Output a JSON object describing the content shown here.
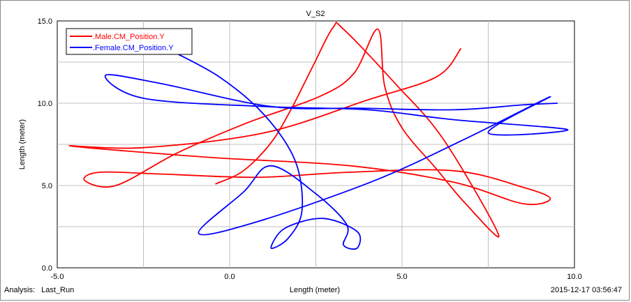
{
  "chart_data": {
    "type": "line",
    "title": "V_S2",
    "xlabel": "Length (meter)",
    "ylabel": "Length (meter)",
    "xlim": [
      -5.0,
      10.0
    ],
    "ylim": [
      0.0,
      15.0
    ],
    "x_ticks": [
      "-5.0",
      "0.0",
      "5.0",
      "10.0"
    ],
    "y_ticks": [
      "0.0",
      "5.0",
      "10.0",
      "15.0"
    ],
    "x_tick_values": [
      -5.0,
      0.0,
      5.0,
      10.0
    ],
    "y_tick_values": [
      0.0,
      5.0,
      10.0,
      15.0
    ],
    "grid": true,
    "legend_position": "top-left",
    "series": [
      {
        "name": ".Male.CM_Position.Y",
        "color": "#ff0000",
        "points": [
          [
            -0.4,
            5.1
          ],
          [
            0.4,
            5.9
          ],
          [
            1.2,
            7.6
          ],
          [
            1.8,
            9.7
          ],
          [
            2.4,
            12.2
          ],
          [
            3.0,
            14.6
          ],
          [
            3.3,
            14.5
          ],
          [
            4.8,
            11.2
          ],
          [
            6.2,
            7.8
          ],
          [
            7.8,
            2.0
          ],
          [
            6.8,
            4.0
          ],
          [
            6.0,
            6.0
          ],
          [
            5.0,
            8.5
          ],
          [
            4.5,
            11.0
          ],
          [
            4.3,
            14.5
          ],
          [
            3.6,
            11.8
          ],
          [
            2.6,
            10.4
          ],
          [
            0.5,
            8.8
          ],
          [
            -1.5,
            7.0
          ],
          [
            -3.3,
            5.0
          ],
          [
            -4.2,
            5.3
          ],
          [
            -3.8,
            5.8
          ],
          [
            -2.0,
            5.7
          ],
          [
            0.8,
            5.5
          ],
          [
            3.4,
            5.8
          ],
          [
            6.5,
            5.9
          ],
          [
            8.5,
            4.9
          ],
          [
            9.3,
            4.2
          ],
          [
            8.5,
            3.9
          ],
          [
            6.5,
            5.2
          ],
          [
            3.5,
            6.2
          ],
          [
            -0.5,
            6.7
          ],
          [
            -4.6,
            7.4
          ],
          [
            -2.5,
            7.3
          ],
          [
            1.0,
            8.2
          ],
          [
            4.0,
            10.2
          ],
          [
            6.0,
            11.6
          ],
          [
            6.7,
            13.3
          ]
        ]
      },
      {
        "name": ".Female.CM_Position.Y",
        "color": "#0000ff",
        "points": [
          [
            -1.8,
            13.3
          ],
          [
            -0.3,
            11.6
          ],
          [
            1.0,
            9.3
          ],
          [
            1.9,
            6.5
          ],
          [
            2.1,
            3.5
          ],
          [
            1.7,
            1.8
          ],
          [
            1.2,
            1.2
          ],
          [
            1.6,
            2.4
          ],
          [
            2.7,
            3.0
          ],
          [
            3.7,
            2.2
          ],
          [
            3.7,
            1.2
          ],
          [
            3.3,
            1.4
          ],
          [
            3.4,
            2.6
          ],
          [
            2.5,
            4.5
          ],
          [
            1.2,
            6.2
          ],
          [
            0.4,
            4.6
          ],
          [
            -0.9,
            2.1
          ],
          [
            0.8,
            2.8
          ],
          [
            4.2,
            5.3
          ],
          [
            6.8,
            7.8
          ],
          [
            9.3,
            10.4
          ],
          [
            7.5,
            8.2
          ],
          [
            9.8,
            8.4
          ],
          [
            6.5,
            9.0
          ],
          [
            4.0,
            9.6
          ],
          [
            1.0,
            9.8
          ],
          [
            -2.5,
            10.3
          ],
          [
            -3.6,
            11.7
          ],
          [
            -2.0,
            11.2
          ],
          [
            1.2,
            9.8
          ],
          [
            3.8,
            9.7
          ],
          [
            6.5,
            9.6
          ],
          [
            8.5,
            9.9
          ],
          [
            9.5,
            10.0
          ]
        ]
      }
    ]
  },
  "footer": {
    "analysis_label": "Analysis:",
    "analysis_value": "Last_Run",
    "timestamp": "2015-12-17 03:56:47"
  }
}
